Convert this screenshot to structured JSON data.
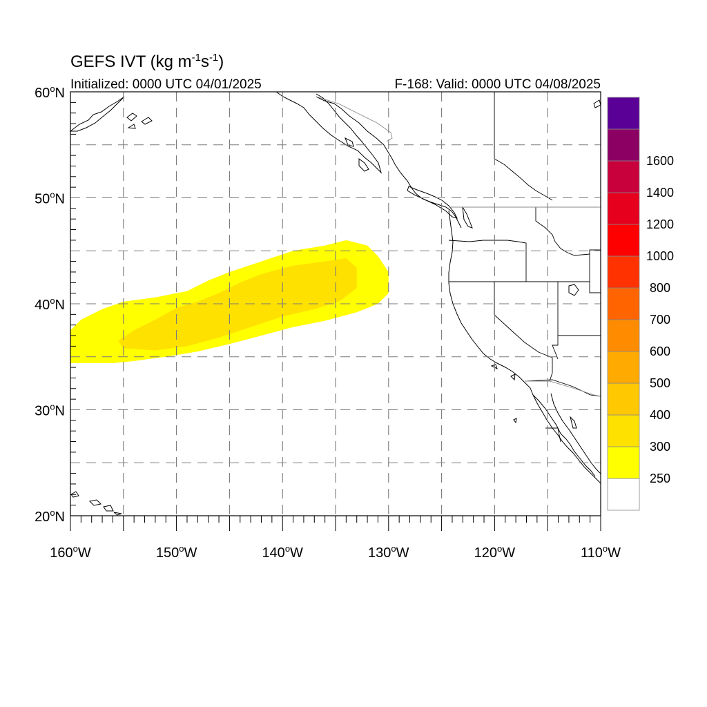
{
  "title": {
    "main": "GEFS IVT (kg m",
    "sup1": "-1",
    "mid": "s",
    "sup2": "-1",
    "end": ")"
  },
  "subtitle_left": "Initialized: 0000 UTC 04/01/2025",
  "subtitle_right": "F-168: Valid: 0000 UTC 04/08/2025",
  "map": {
    "lon_range": [
      -160,
      -110
    ],
    "lat_range": [
      20,
      60
    ],
    "grid_lines": "dashed",
    "x_ticks": [
      {
        "lon": -160,
        "label": "160",
        "hemi": "W"
      },
      {
        "lon": -150,
        "label": "150",
        "hemi": "W"
      },
      {
        "lon": -140,
        "label": "140",
        "hemi": "W"
      },
      {
        "lon": -130,
        "label": "130",
        "hemi": "W"
      },
      {
        "lon": -120,
        "label": "120",
        "hemi": "W"
      },
      {
        "lon": -110,
        "label": "110",
        "hemi": "W"
      }
    ],
    "y_ticks": [
      {
        "lat": 60,
        "label": "60",
        "hemi": "N"
      },
      {
        "lat": 50,
        "label": "50",
        "hemi": "N"
      },
      {
        "lat": 40,
        "label": "40",
        "hemi": "N"
      },
      {
        "lat": 30,
        "label": "30",
        "hemi": "N"
      },
      {
        "lat": 20,
        "label": "20",
        "hemi": "N"
      }
    ]
  },
  "ivt_field": {
    "units": "kg m-1 s-1",
    "regions": [
      {
        "level": 250,
        "color": "#ffff00",
        "lat_top": 46,
        "lat_bottom": 34.5,
        "lon_west": -160,
        "lon_east": -130
      },
      {
        "level": 300,
        "color": "#ffe100",
        "lat_top": 44.5,
        "lat_bottom": 35.5,
        "lon_west": -155.5,
        "lon_east": -133
      }
    ]
  },
  "colorbar": {
    "labels": [
      "250",
      "300",
      "400",
      "500",
      "600",
      "700",
      "800",
      "1000",
      "1200",
      "1400",
      "1600"
    ],
    "colors": [
      "#ffffff",
      "#ffff00",
      "#ffe100",
      "#ffc800",
      "#ffaa00",
      "#ff8c00",
      "#ff6400",
      "#ff3200",
      "#ff0000",
      "#e6001e",
      "#c8003c",
      "#8c0064",
      "#5a0096"
    ]
  }
}
